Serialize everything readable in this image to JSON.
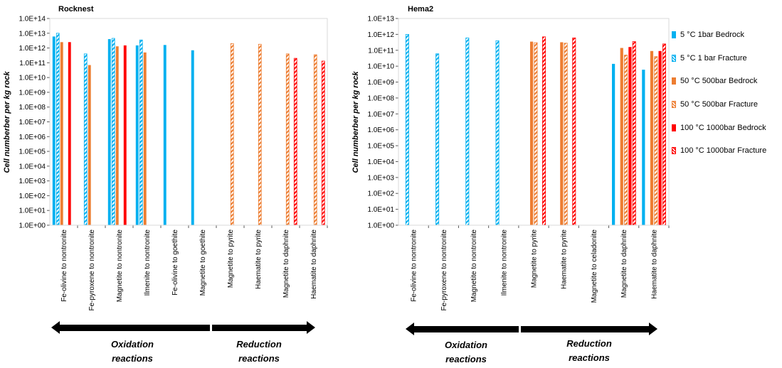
{
  "colors": {
    "c5": "#00B0F0",
    "c50": "#ED7D31",
    "c100": "#FF0000"
  },
  "legend": [
    {
      "label": "5 °C 1bar Bedrock",
      "color": "#00B0F0",
      "hatched": false
    },
    {
      "label": "5 °C 1 bar Fracture",
      "color": "#00B0F0",
      "hatched": true
    },
    {
      "label": "50 °C 500bar Bedrock",
      "color": "#ED7D31",
      "hatched": false
    },
    {
      "label": "50 °C 500bar Fracture",
      "color": "#ED7D31",
      "hatched": true
    },
    {
      "label": "100 °C 1000bar Bedrock",
      "color": "#FF0000",
      "hatched": false
    },
    {
      "label": "100 °C 1000bar Fracture",
      "color": "#FF0000",
      "hatched": true
    }
  ],
  "arrows": {
    "oxidation_line1": "Oxidation",
    "oxidation_line2": "reactions",
    "reduction_line1": "Reduction",
    "reduction_line2": "reactions"
  },
  "chart_data": [
    {
      "type": "bar",
      "title": "Rocknest",
      "ylabel": "Cell numberber per kg rock",
      "yscale": "log",
      "ylim": [
        1,
        100000000000000.0
      ],
      "ytick_labels": [
        "1.0E+00",
        "1.0E+01",
        "1.0E+02",
        "1.0E+03",
        "1.0E+04",
        "1.0E+05",
        "1.0E+06",
        "1.0E+07",
        "1.0E+08",
        "1.0E+09",
        "1.0E+10",
        "1.0E+11",
        "1.0E+12",
        "1.0E+13",
        "1.0E+14"
      ],
      "categories": [
        "Fe-olivine to nontronite",
        "Fe-pyroxene to nontronite",
        "Magnetite to nontronite",
        "Ilmenite to nontronite",
        "Fe-olivine to goethite",
        "Magnetite to goethite",
        "Magnetite to pyrite",
        "Haematite to pyrite",
        "Magnetite to daphnite",
        "Haematite to daphnite"
      ],
      "series": [
        {
          "name": "5 °C 1bar Bedrock",
          "values": [
            6000000000000.0,
            null,
            4000000000000.0,
            1500000000000.0,
            1600000000000.0,
            700000000000.0,
            null,
            null,
            null,
            null
          ]
        },
        {
          "name": "5 °C 1 bar Fracture",
          "values": [
            10000000000000.0,
            400000000000.0,
            4500000000000.0,
            3500000000000.0,
            null,
            null,
            null,
            null,
            null,
            null
          ]
        },
        {
          "name": "50 °C 500bar Bedrock",
          "values": [
            2500000000000.0,
            70000000000.0,
            1300000000000.0,
            500000000000.0,
            null,
            null,
            null,
            null,
            null,
            null
          ]
        },
        {
          "name": "50 °C 500bar Fracture",
          "values": [
            null,
            null,
            null,
            null,
            null,
            null,
            2000000000000.0,
            1800000000000.0,
            400000000000.0,
            350000000000.0
          ]
        },
        {
          "name": "100 °C 1000bar Bedrock",
          "values": [
            2500000000000.0,
            null,
            1500000000000.0,
            null,
            null,
            null,
            null,
            null,
            null,
            null
          ]
        },
        {
          "name": "100 °C 1000bar Fracture",
          "values": [
            null,
            null,
            null,
            null,
            null,
            null,
            null,
            null,
            200000000000.0,
            130000000000.0
          ]
        }
      ]
    },
    {
      "type": "bar",
      "title": "Hema2",
      "ylabel": "Cell numberber per kg rock",
      "yscale": "log",
      "ylim": [
        1,
        10000000000000.0
      ],
      "ytick_labels": [
        "1.0E+00",
        "1.0E+01",
        "1.0E+02",
        "1.0E+03",
        "1.0E+04",
        "1.0E+05",
        "1.0E+06",
        "1.0E+07",
        "1.0E+08",
        "1.0E+09",
        "1.0E+10",
        "1.0E+11",
        "1.0E+12",
        "1.0E+13"
      ],
      "categories": [
        "Fe-olivine to nontronite",
        "Fe-pyroxene to nontronite",
        "Magnetite to nontronite",
        "Ilmenite to nontronite",
        "Magnetite to pyrite",
        "Haematite to pyrite",
        "Magnetite to celadonite",
        "Magnetite to daphnite",
        "Haematite to daphnite"
      ],
      "series": [
        {
          "name": "5 °C 1bar Bedrock",
          "values": [
            null,
            null,
            null,
            null,
            null,
            null,
            null,
            14000000000.0,
            6000000000.0
          ]
        },
        {
          "name": "5 °C 1 bar Fracture",
          "values": [
            1000000000000.0,
            60000000000.0,
            600000000000.0,
            400000000000.0,
            null,
            null,
            null,
            null,
            null
          ]
        },
        {
          "name": "50 °C 500bar Bedrock",
          "values": [
            null,
            null,
            null,
            null,
            350000000000.0,
            320000000000.0,
            null,
            140000000000.0,
            90000000000.0
          ]
        },
        {
          "name": "50 °C 500bar Fracture",
          "values": [
            null,
            null,
            null,
            null,
            300000000000.0,
            280000000000.0,
            null,
            50000000000.0,
            40000000000.0
          ]
        },
        {
          "name": "100 °C 1000bar Bedrock",
          "values": [
            null,
            null,
            null,
            null,
            null,
            null,
            null,
            160000000000.0,
            90000000000.0
          ]
        },
        {
          "name": "100 °C 1000bar Fracture",
          "values": [
            null,
            null,
            null,
            null,
            700000000000.0,
            600000000000.0,
            null,
            350000000000.0,
            250000000000.0
          ]
        }
      ]
    }
  ]
}
